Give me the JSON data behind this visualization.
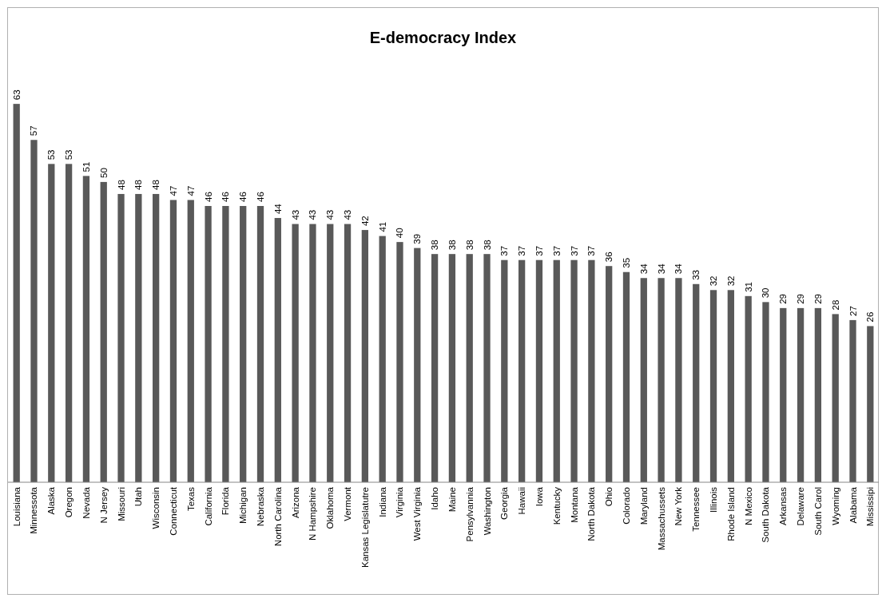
{
  "chart_data": {
    "type": "bar",
    "title": "E-democracy Index",
    "categories": [
      "Louisiana",
      "Minnessota",
      "Alaska",
      "Oregon",
      "Nevada",
      "N Jersey",
      "Missouri",
      "Utah",
      "Wisconsin",
      "Connecticut",
      "Texas",
      "California",
      "Florida",
      "Michigan",
      "Nebraska",
      "North Carolina",
      "Arizona",
      "N Hampshire",
      "Oklahoma",
      "Vermont",
      "Kansas Legislatutre",
      "Indiana",
      "Virginia",
      "West Virginia",
      "Idaho",
      "Maine",
      "Pensylvannia",
      "Washington",
      "Georgia",
      "Hawaii",
      "Iowa",
      "Kentucky",
      "Montana",
      "North Dakota",
      "Ohio",
      "Colorado",
      "Maryland",
      "Massachussets",
      "New York",
      "Tennessee",
      "Illinois",
      "Rhode Island",
      "N Mexico",
      "South Dakota",
      "Arkansas",
      "Delaware",
      "South Carol",
      "Wyoming",
      "Alabama",
      "Mississipi"
    ],
    "values": [
      63,
      57,
      53,
      53,
      51,
      50,
      48,
      48,
      48,
      47,
      47,
      46,
      46,
      46,
      46,
      44,
      43,
      43,
      43,
      43,
      42,
      41,
      40,
      39,
      38,
      38,
      38,
      38,
      37,
      37,
      37,
      37,
      37,
      37,
      36,
      35,
      34,
      34,
      34,
      33,
      32,
      32,
      31,
      30,
      29,
      29,
      29,
      28,
      27,
      26
    ],
    "color": "#595959",
    "data_labels": true
  }
}
